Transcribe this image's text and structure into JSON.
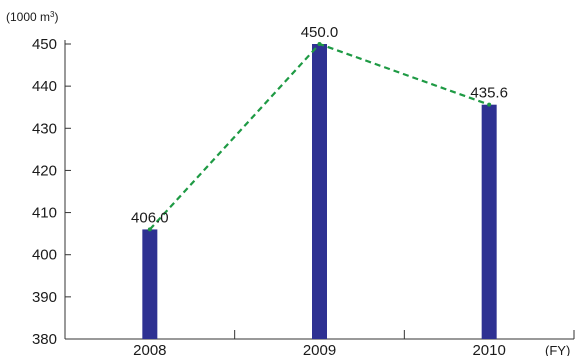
{
  "chart_data": {
    "type": "bar",
    "categories": [
      "2008",
      "2009",
      "2010"
    ],
    "values": [
      406.0,
      450.0,
      435.6
    ],
    "data_labels": [
      "406.0",
      "450.0",
      "435.6"
    ],
    "yticks": [
      "380",
      "390",
      "400",
      "410",
      "420",
      "430",
      "440",
      "450"
    ],
    "ylim": [
      380,
      450
    ],
    "y_unit_label": "(1000 m",
    "y_unit_superscript": "3",
    "y_unit_close": ")",
    "x_unit_label": "(FY)",
    "grid": false,
    "colors": {
      "bar": "#2e3192",
      "trend_line": "#1e9a44",
      "axis": "#333333"
    }
  }
}
